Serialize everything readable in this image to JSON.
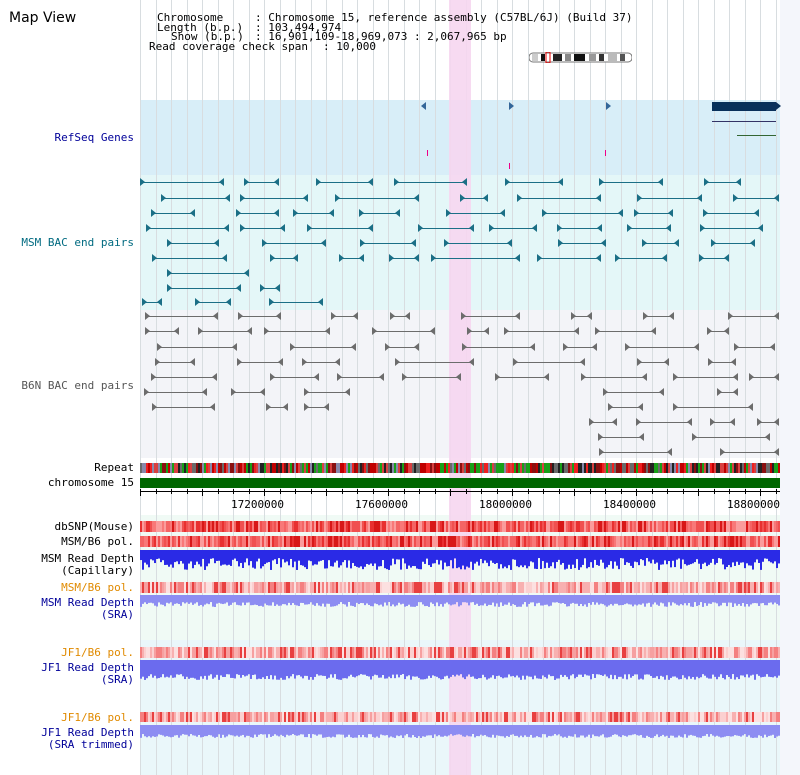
{
  "view": {
    "title": "Map View"
  },
  "info": {
    "chromosome_key": "Chromosome",
    "chromosome_value": ": Chromosome 15, reference assembly (C57BL/6J) (Build 37)",
    "length_key": "Length (b.p.)",
    "length_value": ": 103,494,974",
    "show_key": "Show (b.p.)",
    "show_value": ": 16,901,109-18,969,073 : 2,067,965 bp",
    "coverage_key": "Read coverage check span",
    "coverage_value": ": 10,000"
  },
  "tracks": {
    "refseq": "RefSeq Genes",
    "msm_bac": "MSM BAC end pairs",
    "b6n_bac": "B6N BAC end pairs",
    "repeat": "Repeat",
    "chromosome": "chromosome 15",
    "dbsnp": "dbSNP(Mouse)",
    "msm_b6_pol_1": "MSM/B6 pol.",
    "msm_read_depth_cap_1": "MSM Read Depth",
    "msm_read_depth_cap_2": "(Capillary)",
    "msm_b6_pol_2": "MSM/B6 pol.",
    "msm_read_depth_sra_1": "MSM Read Depth",
    "msm_read_depth_sra_2": "(SRA)",
    "jf1_b6_pol_1": "JF1/B6 pol.",
    "jf1_read_depth_sra_1": "JF1 Read Depth",
    "jf1_read_depth_sra_2": "(SRA)",
    "jf1_b6_pol_2": "JF1/B6 pol.",
    "jf1_read_depth_trim_1": "JF1 Read Depth",
    "jf1_read_depth_trim_2": "(SRA trimmed)"
  },
  "axis": {
    "ticks": [
      "17200000",
      "17600000",
      "18000000",
      "18400000",
      "18800000"
    ]
  },
  "colors": {
    "refseq_bg": "#d8eef8",
    "msm_bg": "#e4f7f8",
    "b6n_bg": "#f3f4f8",
    "highlight": "#f6d6f0",
    "chromosome_bar": "#006600",
    "msm_label": "#006a80",
    "b6n_label": "#555555",
    "navy_label": "#000099",
    "orange_label": "#e08a00",
    "depth_blue": "#2a2ae0",
    "depth_light": "#7a7af0"
  }
}
